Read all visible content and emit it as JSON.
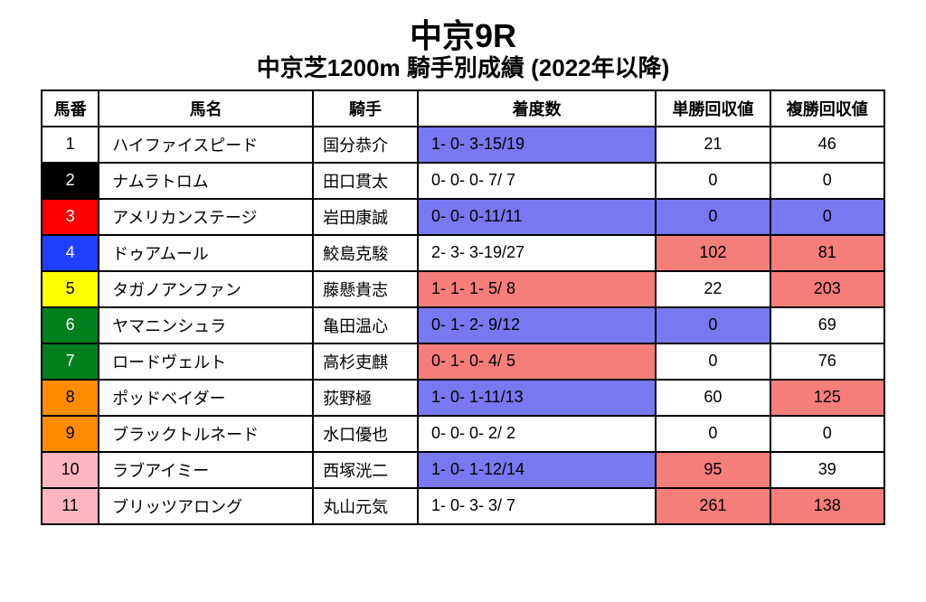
{
  "title": {
    "main": "中京9R",
    "sub": "中京芝1200m 騎手別成績 (2022年以降)"
  },
  "columns": [
    "馬番",
    "馬名",
    "騎手",
    "着度数",
    "単勝回収値",
    "複勝回収値"
  ],
  "highlight_colors": {
    "blue": "#7878f0",
    "red": "#f57e7b",
    "none": "#ffffff"
  },
  "num_colors": {
    "white": {
      "bg": "#ffffff",
      "fg": "#000000"
    },
    "black": {
      "bg": "#000000",
      "fg": "#ffffff"
    },
    "red": {
      "bg": "#ff0000",
      "fg": "#ffffff"
    },
    "blue": {
      "bg": "#2040ff",
      "fg": "#ffffff"
    },
    "yellow": {
      "bg": "#ffff00",
      "fg": "#000000"
    },
    "green": {
      "bg": "#007f1f",
      "fg": "#ffffff"
    },
    "orange": {
      "bg": "#ff8c00",
      "fg": "#000000"
    },
    "pink": {
      "bg": "#ffb6c1",
      "fg": "#000000"
    }
  },
  "rows": [
    {
      "num": "1",
      "num_color": "white",
      "horse": "ハイファイスピード",
      "jockey": "国分恭介",
      "record": "1- 0- 3-15/19",
      "rec_hl": "blue",
      "win": "21",
      "win_hl": "none",
      "place": "46",
      "place_hl": "none"
    },
    {
      "num": "2",
      "num_color": "black",
      "horse": "ナムラトロム",
      "jockey": "田口貫太",
      "record": "0- 0- 0- 7/ 7",
      "rec_hl": "none",
      "win": "0",
      "win_hl": "none",
      "place": "0",
      "place_hl": "none"
    },
    {
      "num": "3",
      "num_color": "red",
      "horse": "アメリカンステージ",
      "jockey": "岩田康誠",
      "record": "0- 0- 0-11/11",
      "rec_hl": "blue",
      "win": "0",
      "win_hl": "blue",
      "place": "0",
      "place_hl": "blue"
    },
    {
      "num": "4",
      "num_color": "blue",
      "horse": "ドゥアムール",
      "jockey": "鮫島克駿",
      "record": "2- 3- 3-19/27",
      "rec_hl": "none",
      "win": "102",
      "win_hl": "red",
      "place": "81",
      "place_hl": "red"
    },
    {
      "num": "5",
      "num_color": "yellow",
      "horse": "タガノアンファン",
      "jockey": "藤懸貴志",
      "record": "1- 1- 1- 5/ 8",
      "rec_hl": "red",
      "win": "22",
      "win_hl": "none",
      "place": "203",
      "place_hl": "red"
    },
    {
      "num": "6",
      "num_color": "green",
      "horse": "ヤマニンシュラ",
      "jockey": "亀田温心",
      "record": "0- 1- 2- 9/12",
      "rec_hl": "blue",
      "win": "0",
      "win_hl": "blue",
      "place": "69",
      "place_hl": "none"
    },
    {
      "num": "7",
      "num_color": "green",
      "horse": "ロードヴェルト",
      "jockey": "高杉吏麒",
      "record": "0- 1- 0- 4/ 5",
      "rec_hl": "red",
      "win": "0",
      "win_hl": "none",
      "place": "76",
      "place_hl": "none"
    },
    {
      "num": "8",
      "num_color": "orange",
      "horse": "ポッドベイダー",
      "jockey": "荻野極",
      "record": "1- 0- 1-11/13",
      "rec_hl": "blue",
      "win": "60",
      "win_hl": "none",
      "place": "125",
      "place_hl": "red"
    },
    {
      "num": "9",
      "num_color": "orange",
      "horse": "ブラックトルネード",
      "jockey": "水口優也",
      "record": "0- 0- 0- 2/ 2",
      "rec_hl": "none",
      "win": "0",
      "win_hl": "none",
      "place": "0",
      "place_hl": "none"
    },
    {
      "num": "10",
      "num_color": "pink",
      "horse": "ラブアイミー",
      "jockey": "西塚洸二",
      "record": "1- 0- 1-12/14",
      "rec_hl": "blue",
      "win": "95",
      "win_hl": "red",
      "place": "39",
      "place_hl": "none"
    },
    {
      "num": "11",
      "num_color": "pink",
      "horse": "ブリッツアロング",
      "jockey": "丸山元気",
      "record": "1- 0- 3- 3/ 7",
      "rec_hl": "none",
      "win": "261",
      "win_hl": "red",
      "place": "138",
      "place_hl": "red"
    }
  ]
}
